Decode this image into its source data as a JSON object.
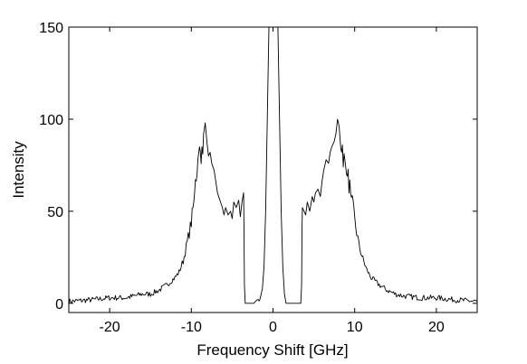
{
  "chart_data": {
    "type": "line",
    "title": "",
    "xlabel": "Frequency Shift [GHz]",
    "ylabel": "Intensity",
    "xlim": [
      -25,
      25
    ],
    "ylim": [
      -5,
      150
    ],
    "xticks": [
      -20,
      -10,
      0,
      10,
      20
    ],
    "yticks": [
      0,
      50,
      100,
      150
    ],
    "xtick_labels": [
      "-20",
      "-10",
      "0",
      "10",
      "20"
    ],
    "ytick_labels": [
      "0",
      "50",
      "100",
      "150"
    ],
    "grid": false,
    "legend": "none",
    "line_color": "#000000",
    "series": [
      {
        "x": [
          -25,
          -22,
          -20,
          -18,
          -16,
          -15,
          -14,
          -13,
          -12,
          -11.5,
          -11,
          -10.5,
          -10,
          -9.7,
          -9.5,
          -9.2,
          -9,
          -8.8,
          -8.5,
          -8.3,
          -8.1,
          -7.9,
          -7.7,
          -7.5,
          -7.2,
          -7,
          -6.8,
          -6.5,
          -6.2,
          -6,
          -5.8,
          -5.5,
          -5.2,
          -5,
          -4.8,
          -4.5,
          -4.2,
          -4,
          -3.8,
          -3.6,
          -3.55,
          -3.5,
          -3.4,
          -2.2,
          -1.8,
          -1.5,
          -1.3,
          -1.1,
          -0.9,
          -0.7,
          -0.5,
          0.6,
          0.8,
          1.0,
          1.2,
          1.4,
          1.6,
          3.4,
          3.5,
          3.55,
          3.6,
          3.8,
          4,
          4.2,
          4.5,
          4.8,
          5,
          5.2,
          5.5,
          5.8,
          6,
          6.2,
          6.5,
          6.8,
          7,
          7.2,
          7.5,
          7.7,
          7.9,
          8.1,
          8.3,
          8.5,
          8.8,
          9,
          9.2,
          9.5,
          9.7,
          10,
          10.5,
          11,
          11.5,
          12,
          13,
          14,
          15,
          16,
          18,
          20,
          22,
          25
        ],
        "y": [
          1,
          2,
          3,
          3,
          5,
          5,
          7,
          10,
          14,
          17,
          23,
          33,
          44,
          55,
          65,
          78,
          85,
          80,
          92,
          98,
          88,
          80,
          82,
          76,
          72,
          66,
          60,
          56,
          52,
          48,
          52,
          48,
          50,
          46,
          55,
          52,
          56,
          47,
          55,
          60,
          40,
          10,
          0,
          0,
          2,
          4,
          8,
          20,
          50,
          100,
          150,
          150,
          100,
          50,
          20,
          5,
          0,
          0,
          10,
          40,
          52,
          50,
          48,
          55,
          50,
          58,
          55,
          60,
          62,
          58,
          66,
          72,
          78,
          76,
          82,
          85,
          88,
          92,
          100,
          96,
          84,
          80,
          78,
          70,
          68,
          60,
          55,
          45,
          32,
          24,
          18,
          14,
          10,
          7,
          5,
          4,
          3,
          3,
          2,
          1
        ]
      }
    ]
  }
}
